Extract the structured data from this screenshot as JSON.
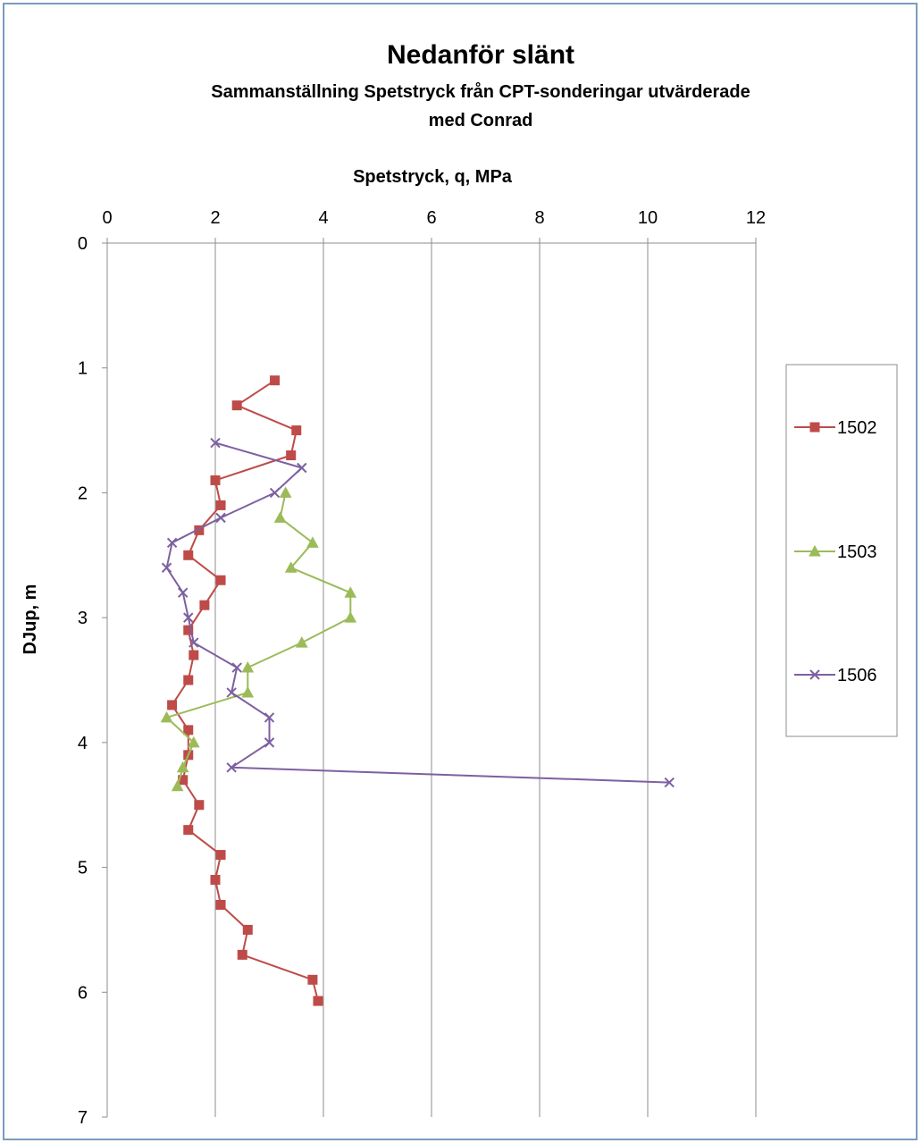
{
  "chart_data": {
    "type": "line",
    "title": "Nedanför slänt",
    "subtitle_lines": [
      "Sammanställning Spetstryck från CPT-sonderingar utvärderade",
      "med Conrad"
    ],
    "xlabel": "Spetstryck, q, MPa",
    "ylabel": "DJup, m",
    "xlim": [
      0,
      12
    ],
    "ylim": [
      0,
      7
    ],
    "y_inverted": true,
    "x_axis_position": "top",
    "x_ticks": [
      "0",
      "2",
      "4",
      "6",
      "8",
      "10",
      "12"
    ],
    "y_ticks": [
      "0",
      "1",
      "2",
      "3",
      "4",
      "5",
      "6",
      "7"
    ],
    "grid": "vertical",
    "legend_position": "right",
    "series": [
      {
        "name": "1502",
        "color": "#be4b48",
        "marker": "square",
        "points": [
          [
            3.1,
            1.1
          ],
          [
            2.4,
            1.3
          ],
          [
            3.5,
            1.5
          ],
          [
            3.4,
            1.7
          ],
          [
            2.0,
            1.9
          ],
          [
            2.1,
            2.1
          ],
          [
            1.7,
            2.3
          ],
          [
            1.5,
            2.5
          ],
          [
            2.1,
            2.7
          ],
          [
            1.8,
            2.9
          ],
          [
            1.5,
            3.1
          ],
          [
            1.6,
            3.3
          ],
          [
            1.5,
            3.5
          ],
          [
            1.2,
            3.7
          ],
          [
            1.5,
            3.9
          ],
          [
            1.5,
            4.1
          ],
          [
            1.4,
            4.3
          ],
          [
            1.7,
            4.5
          ],
          [
            1.5,
            4.7
          ],
          [
            2.1,
            4.9
          ],
          [
            2.0,
            5.1
          ],
          [
            2.1,
            5.3
          ],
          [
            2.6,
            5.5
          ],
          [
            2.5,
            5.7
          ],
          [
            3.8,
            5.9
          ],
          [
            3.9,
            6.07
          ]
        ]
      },
      {
        "name": "1503",
        "color": "#9bbb59",
        "marker": "triangle",
        "points": [
          [
            3.3,
            2.0
          ],
          [
            3.2,
            2.2
          ],
          [
            3.8,
            2.4
          ],
          [
            3.4,
            2.6
          ],
          [
            4.5,
            2.8
          ],
          [
            4.5,
            3.0
          ],
          [
            3.6,
            3.2
          ],
          [
            2.6,
            3.4
          ],
          [
            2.6,
            3.6
          ],
          [
            1.1,
            3.8
          ],
          [
            1.6,
            4.0
          ],
          [
            1.4,
            4.2
          ],
          [
            1.3,
            4.35
          ]
        ]
      },
      {
        "name": "1506",
        "color": "#7d60a0",
        "marker": "x",
        "points": [
          [
            2.0,
            1.6
          ],
          [
            3.6,
            1.8
          ],
          [
            3.1,
            2.0
          ],
          [
            2.1,
            2.2
          ],
          [
            1.2,
            2.4
          ],
          [
            1.1,
            2.6
          ],
          [
            1.4,
            2.8
          ],
          [
            1.5,
            3.0
          ],
          [
            1.6,
            3.2
          ],
          [
            2.4,
            3.4
          ],
          [
            2.3,
            3.6
          ],
          [
            3.0,
            3.8
          ],
          [
            3.0,
            4.0
          ],
          [
            2.3,
            4.2
          ],
          [
            10.4,
            4.32
          ]
        ]
      }
    ]
  }
}
